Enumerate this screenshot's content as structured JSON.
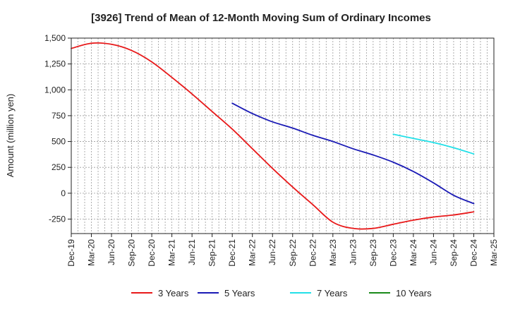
{
  "chart_data": {
    "type": "line",
    "title": "[3926]  Trend of Mean of 12-Month Moving Sum of Ordinary Incomes",
    "ylabel": "Amount (million yen)",
    "xlabel": "",
    "ylim": [
      -390,
      1500
    ],
    "y_ticks": [
      1500,
      1250,
      1000,
      750,
      500,
      250,
      0,
      -250
    ],
    "y_tick_labels": [
      "1,500",
      "1,250",
      "1,000",
      "750",
      "500",
      "250",
      "0",
      "-250"
    ],
    "x_tick_labels": [
      "Dec-19",
      "Mar-20",
      "Jun-20",
      "Sep-20",
      "Dec-20",
      "Mar-21",
      "Jun-21",
      "Sep-21",
      "Dec-21",
      "Mar-22",
      "Jun-22",
      "Sep-22",
      "Dec-22",
      "Mar-23",
      "Jun-23",
      "Sep-23",
      "Dec-23",
      "Mar-24",
      "Jun-24",
      "Sep-24",
      "Dec-24",
      "Mar-25"
    ],
    "series": [
      {
        "name": "3 Years",
        "color": "#e8191a",
        "start_index": 0,
        "values": [
          1400,
          1450,
          1440,
          1380,
          1270,
          1120,
          960,
          790,
          620,
          430,
          240,
          60,
          -110,
          -280,
          -340,
          -340,
          -300,
          -260,
          -230,
          -210,
          -180
        ]
      },
      {
        "name": "5 Years",
        "color": "#1a1ab5",
        "start_index": 8,
        "values": [
          870,
          770,
          690,
          630,
          560,
          500,
          430,
          370,
          300,
          210,
          100,
          -20,
          -100
        ]
      },
      {
        "name": "7 Years",
        "color": "#22e0e8",
        "start_index": 16,
        "values": [
          570,
          530,
          490,
          440,
          380
        ]
      },
      {
        "name": "10 Years",
        "color": "#1a8a1a",
        "start_index": 0,
        "values": []
      }
    ],
    "grid": true,
    "legend_position": "bottom"
  }
}
